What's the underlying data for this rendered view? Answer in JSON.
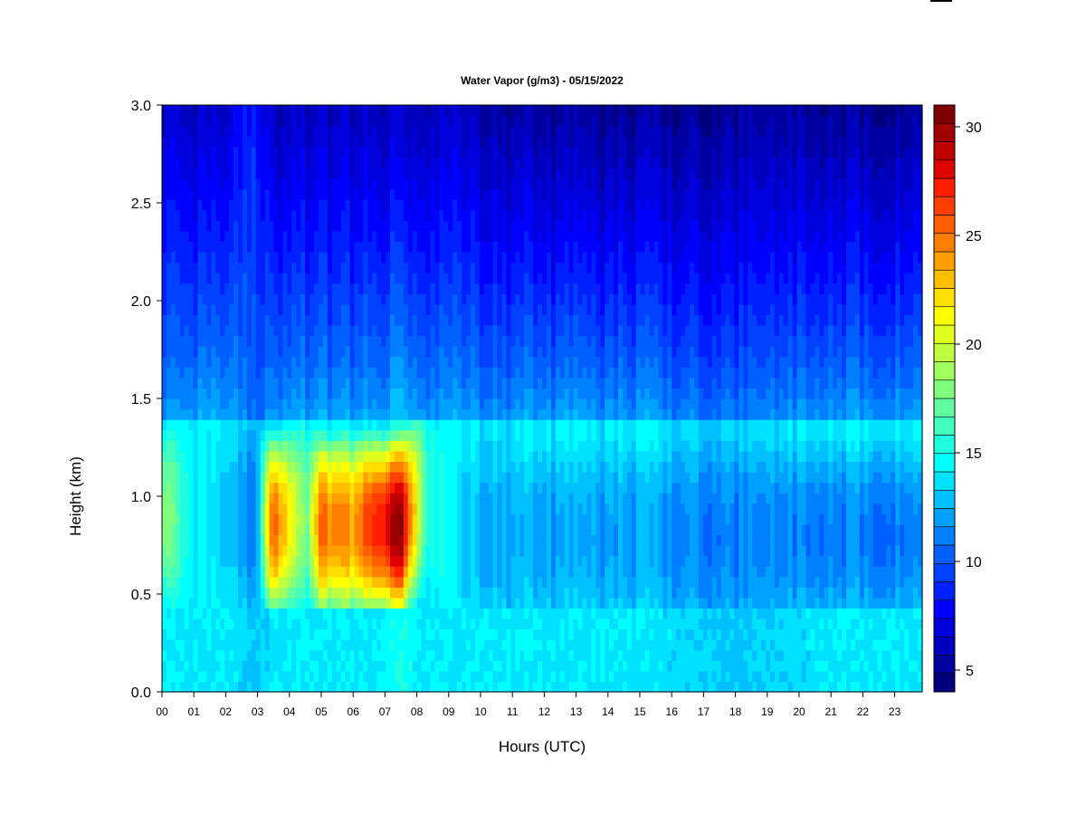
{
  "chart_data": {
    "type": "heatmap",
    "title": "Water Vapor (g/m3) - 05/15/2022",
    "xlabel": "Hours (UTC)",
    "ylabel": "Height (km)",
    "x_ticks": [
      "00",
      "01",
      "02",
      "03",
      "04",
      "05",
      "06",
      "07",
      "08",
      "09",
      "10",
      "11",
      "12",
      "13",
      "14",
      "15",
      "16",
      "17",
      "18",
      "19",
      "20",
      "21",
      "22",
      "23"
    ],
    "x_range": [
      0,
      24
    ],
    "y_ticks": [
      "0.0",
      "0.5",
      "1.0",
      "1.5",
      "2.0",
      "2.5",
      "3.0"
    ],
    "y_range": [
      0,
      3.0
    ],
    "colorbar": {
      "range": [
        4,
        31
      ],
      "ticks": [
        "5",
        "10",
        "15",
        "20",
        "25",
        "30"
      ],
      "tick_values": [
        5,
        10,
        15,
        20,
        25,
        30
      ],
      "colors": [
        "#00007f",
        "#00009f",
        "#0000bf",
        "#0000df",
        "#0000ff",
        "#0020ff",
        "#0040ff",
        "#0060ff",
        "#0080ff",
        "#00a0ff",
        "#00c0ff",
        "#00e0ff",
        "#00ffff",
        "#20ffdf",
        "#40ffbf",
        "#60ff9f",
        "#80ff7f",
        "#a0ff5f",
        "#c0ff3f",
        "#e0ff1f",
        "#ffff00",
        "#ffdf00",
        "#ffbf00",
        "#ff9f00",
        "#ff7f00",
        "#ff5f00",
        "#ff3f00",
        "#ff1f00",
        "#df0000",
        "#bf0000",
        "#9f0000",
        "#7f0000"
      ]
    },
    "z_profile_by_hour": [
      {
        "hour": 0.0,
        "surface": 14,
        "peak": 19,
        "peak_height": 0.9,
        "top": 7
      },
      {
        "hour": 1.0,
        "surface": 14,
        "peak": 14,
        "peak_height": 0.9,
        "top": 6
      },
      {
        "hour": 2.0,
        "surface": 14,
        "peak": 13,
        "peak_height": 0.9,
        "top": 6
      },
      {
        "hour": 2.9,
        "surface": 13,
        "peak": 11,
        "peak_height": 0.9,
        "top": 9
      },
      {
        "hour": 3.5,
        "surface": 14,
        "peak": 26,
        "peak_height": 0.85,
        "top": 6
      },
      {
        "hour": 4.5,
        "surface": 14,
        "peak": 17,
        "peak_height": 0.9,
        "top": 6
      },
      {
        "hour": 5.0,
        "surface": 14,
        "peak": 25,
        "peak_height": 0.85,
        "top": 6
      },
      {
        "hour": 6.0,
        "surface": 14,
        "peak": 24,
        "peak_height": 0.85,
        "top": 6
      },
      {
        "hour": 6.7,
        "surface": 14,
        "peak": 27,
        "peak_height": 0.85,
        "top": 6
      },
      {
        "hour": 7.5,
        "surface": 15,
        "peak": 30,
        "peak_height": 0.85,
        "top": 6
      },
      {
        "hour": 8.3,
        "surface": 14,
        "peak": 16,
        "peak_height": 1.0,
        "top": 6
      },
      {
        "hour": 9.5,
        "surface": 14,
        "peak": 13,
        "peak_height": 0.8,
        "top": 6
      },
      {
        "hour": 12.0,
        "surface": 14,
        "peak": 12,
        "peak_height": 0.8,
        "top": 5
      },
      {
        "hour": 15.0,
        "surface": 14,
        "peak": 12,
        "peak_height": 0.8,
        "top": 5
      },
      {
        "hour": 18.0,
        "surface": 13,
        "peak": 11,
        "peak_height": 0.8,
        "top": 5
      },
      {
        "hour": 21.0,
        "surface": 14,
        "peak": 11,
        "peak_height": 0.8,
        "top": 5
      },
      {
        "hour": 24.0,
        "surface": 14,
        "peak": 11,
        "peak_height": 0.8,
        "top": 5
      }
    ]
  }
}
